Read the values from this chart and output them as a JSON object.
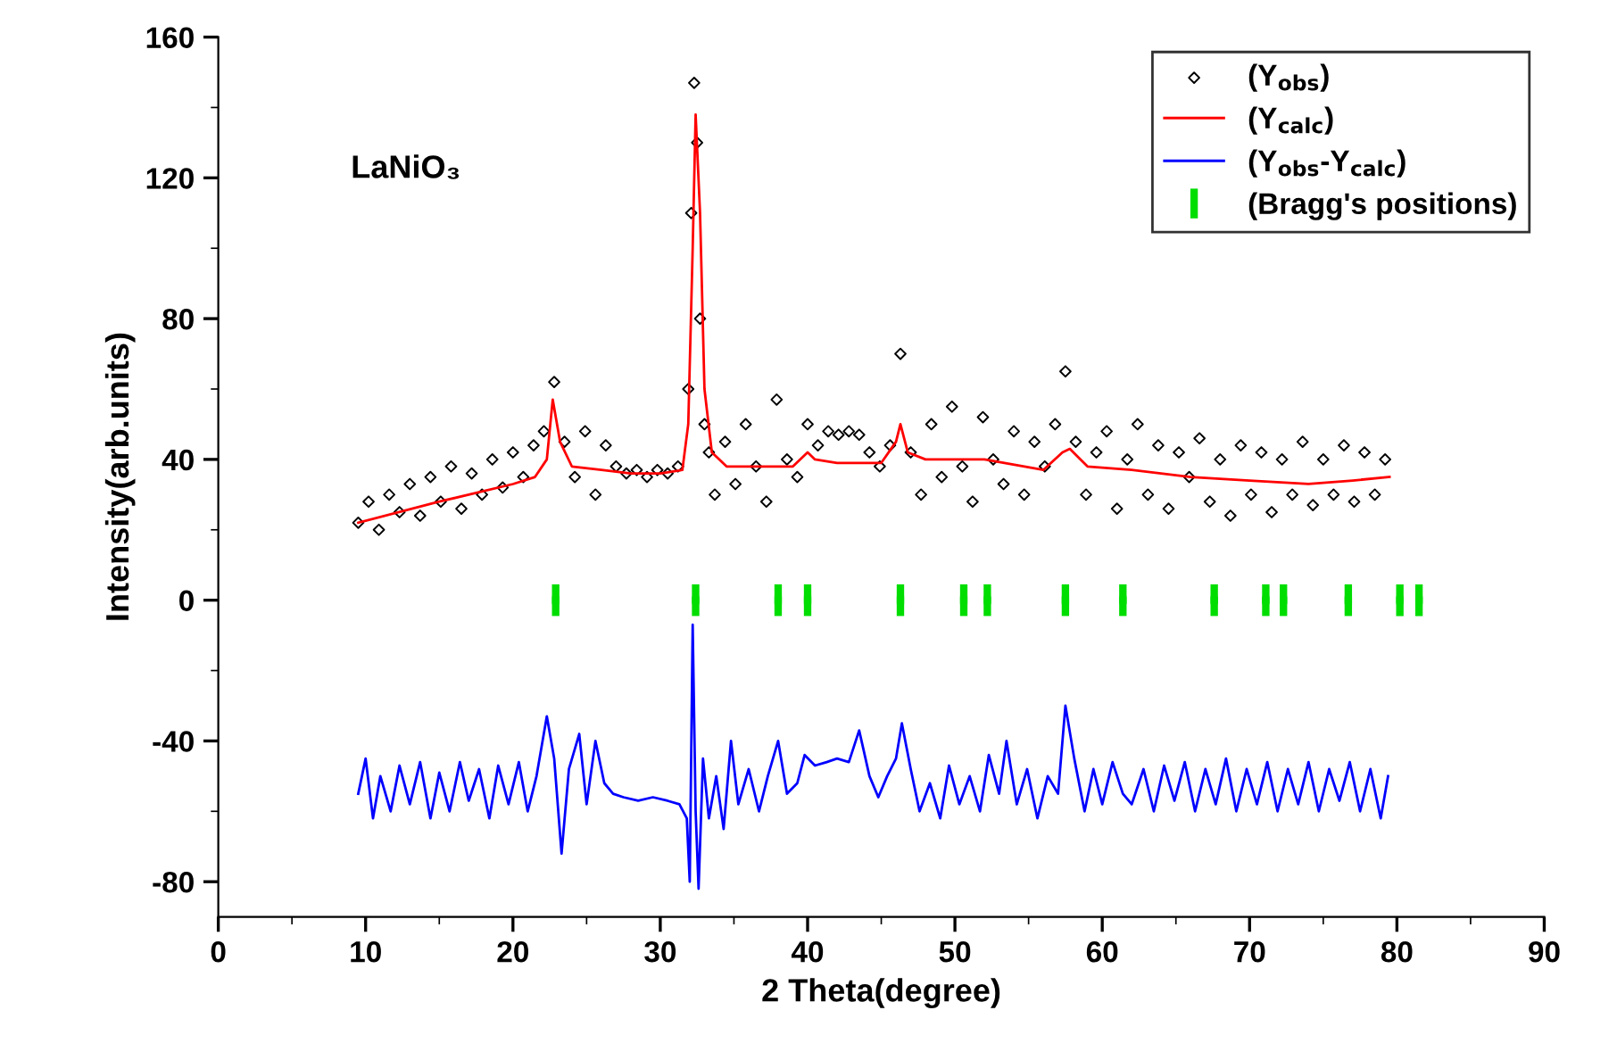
{
  "chart_data": {
    "type": "scatter",
    "xlabel": "2 Theta(degree)",
    "ylabel": "Intensity(arb.units)",
    "annotations": [
      "LaNiO₃"
    ],
    "xlim": [
      0,
      90
    ],
    "xticks": [
      0,
      10,
      20,
      30,
      40,
      50,
      60,
      70,
      80,
      90
    ],
    "ylim": [
      -90,
      160
    ],
    "yticks": [
      -80,
      -40,
      0,
      40,
      80,
      120,
      160
    ],
    "grid": false,
    "legend": "top right",
    "series": [
      {
        "name": "(Y$_{obs}$)",
        "marker": "diamond",
        "color": "#000000",
        "x": [
          9.5,
          10.2,
          10.9,
          11.6,
          12.3,
          13.0,
          13.7,
          14.4,
          15.1,
          15.8,
          16.5,
          17.2,
          17.9,
          18.6,
          19.3,
          20.0,
          20.7,
          21.4,
          22.1,
          22.8,
          23.5,
          24.2,
          24.9,
          25.6,
          26.3,
          27.0,
          27.7,
          28.4,
          29.1,
          29.8,
          30.5,
          31.2,
          31.9,
          32.1,
          32.3,
          32.5,
          32.7,
          33.0,
          33.3,
          33.7,
          34.4,
          35.1,
          35.8,
          36.5,
          37.2,
          37.9,
          38.6,
          39.3,
          40.0,
          40.7,
          41.4,
          42.1,
          42.8,
          43.5,
          44.2,
          44.9,
          45.6,
          46.3,
          47.0,
          47.7,
          48.4,
          49.1,
          49.8,
          50.5,
          51.2,
          51.9,
          52.6,
          53.3,
          54.0,
          54.7,
          55.4,
          56.1,
          56.8,
          57.5,
          58.2,
          58.9,
          59.6,
          60.3,
          61.0,
          61.7,
          62.4,
          63.1,
          63.8,
          64.5,
          65.2,
          65.9,
          66.6,
          67.3,
          68.0,
          68.7,
          69.4,
          70.1,
          70.8,
          71.5,
          72.2,
          72.9,
          73.6,
          74.3,
          75.0,
          75.7,
          76.4,
          77.1,
          77.8,
          78.5,
          79.2
        ],
        "values": [
          22,
          28,
          20,
          30,
          25,
          33,
          24,
          35,
          28,
          38,
          26,
          36,
          30,
          40,
          32,
          42,
          35,
          44,
          48,
          62,
          45,
          35,
          48,
          30,
          44,
          38,
          36,
          37,
          35,
          37,
          36,
          38,
          60,
          110,
          147,
          130,
          80,
          50,
          42,
          30,
          45,
          33,
          50,
          38,
          28,
          57,
          40,
          35,
          50,
          44,
          48,
          47,
          48,
          47,
          42,
          38,
          44,
          70,
          42,
          30,
          50,
          35,
          55,
          38,
          28,
          52,
          40,
          33,
          48,
          30,
          45,
          38,
          50,
          65,
          45,
          30,
          42,
          48,
          26,
          40,
          50,
          30,
          44,
          26,
          42,
          35,
          46,
          28,
          40,
          24,
          44,
          30,
          42,
          25,
          40,
          30,
          45,
          27,
          40,
          30,
          44,
          28,
          42,
          30,
          40
        ]
      },
      {
        "name": "(Y$_{calc}$)",
        "type": "line",
        "marker": "none",
        "color": "#ff0000",
        "x": [
          9.5,
          15,
          20,
          21.5,
          22.3,
          22.7,
          23.2,
          24,
          26,
          28,
          30,
          31.5,
          31.9,
          32.2,
          32.4,
          32.7,
          33,
          33.5,
          34.5,
          37,
          39,
          40,
          40.5,
          42,
          45,
          46,
          46.3,
          46.8,
          48,
          52,
          56,
          57.3,
          57.8,
          59,
          62,
          66,
          70,
          74,
          77,
          79.5
        ],
        "values": [
          22,
          28,
          33,
          35,
          40,
          57,
          45,
          38,
          37,
          36,
          36,
          37,
          50,
          100,
          138,
          110,
          60,
          42,
          38,
          38,
          38,
          42,
          40,
          39,
          39,
          45,
          50,
          42,
          40,
          40,
          37,
          42,
          43,
          38,
          37,
          35,
          34,
          33,
          34,
          35
        ]
      },
      {
        "name": "(Y$_{obs}$-Y$_{calc}$)",
        "type": "line",
        "marker": "none",
        "color": "#0000ff",
        "x": [
          9.5,
          10,
          10.5,
          11,
          11.7,
          12.3,
          13,
          13.7,
          14.4,
          15,
          15.7,
          16.4,
          17,
          17.7,
          18.4,
          19,
          19.7,
          20.4,
          21,
          21.6,
          22.3,
          22.8,
          23.3,
          23.8,
          24.5,
          25,
          25.6,
          26.2,
          26.8,
          27.5,
          28.5,
          29.5,
          30.5,
          31.3,
          31.8,
          32.0,
          32.2,
          32.4,
          32.6,
          32.9,
          33.3,
          33.8,
          34.3,
          34.8,
          35.3,
          36,
          36.7,
          37.3,
          38,
          38.6,
          39.3,
          39.8,
          40.5,
          41.3,
          42,
          42.8,
          43.5,
          44.2,
          44.8,
          45.4,
          46.0,
          46.4,
          47,
          47.6,
          48.3,
          49,
          49.6,
          50.3,
          51,
          51.7,
          52.3,
          53,
          53.5,
          54.2,
          54.9,
          55.6,
          56.3,
          57,
          57.5,
          58.1,
          58.8,
          59.4,
          60,
          60.7,
          61.4,
          62,
          62.8,
          63.5,
          64.2,
          64.9,
          65.6,
          66.3,
          67,
          67.7,
          68.4,
          69.1,
          69.8,
          70.5,
          71.2,
          71.9,
          72.6,
          73.3,
          74,
          74.7,
          75.4,
          76.1,
          76.8,
          77.5,
          78.2,
          78.9,
          79.4
        ],
        "values": [
          -55,
          -45,
          -62,
          -50,
          -60,
          -47,
          -58,
          -46,
          -62,
          -49,
          -60,
          -46,
          -57,
          -48,
          -62,
          -47,
          -58,
          -46,
          -60,
          -50,
          -33,
          -45,
          -72,
          -48,
          -38,
          -58,
          -40,
          -52,
          -55,
          -56,
          -57,
          -56,
          -57,
          -58,
          -62,
          -80,
          -7,
          -60,
          -82,
          -45,
          -62,
          -50,
          -65,
          -40,
          -58,
          -48,
          -60,
          -50,
          -40,
          -55,
          -52,
          -44,
          -47,
          -46,
          -45,
          -46,
          -37,
          -50,
          -56,
          -50,
          -45,
          -35,
          -48,
          -60,
          -52,
          -62,
          -47,
          -58,
          -50,
          -60,
          -44,
          -55,
          -40,
          -58,
          -48,
          -62,
          -50,
          -55,
          -30,
          -45,
          -60,
          -48,
          -58,
          -46,
          -55,
          -58,
          -48,
          -60,
          -47,
          -57,
          -46,
          -60,
          -48,
          -58,
          -45,
          -60,
          -48,
          -58,
          -46,
          -60,
          -48,
          -58,
          -46,
          -60,
          -48,
          -57,
          -46,
          -60,
          -48,
          -62,
          -50
        ]
      },
      {
        "name": "(Bragg's positions)",
        "type": "scatter",
        "marker": "square",
        "color": "#00dd00",
        "errors": [
          4.5,
          4.5,
          4.5,
          4.5,
          4.5,
          4.5,
          4.5,
          4.5,
          4.5,
          4.5,
          4.5,
          4.5,
          4.5,
          4.5,
          4.5
        ],
        "x": [
          22.9,
          32.4,
          38.0,
          40.0,
          46.3,
          50.6,
          52.2,
          57.5,
          61.4,
          67.6,
          71.1,
          72.3,
          76.7,
          80.2,
          81.5
        ],
        "values": [
          0,
          0,
          0,
          0,
          0,
          0,
          0,
          0,
          0,
          0,
          0,
          0,
          0,
          0,
          0
        ]
      }
    ]
  }
}
